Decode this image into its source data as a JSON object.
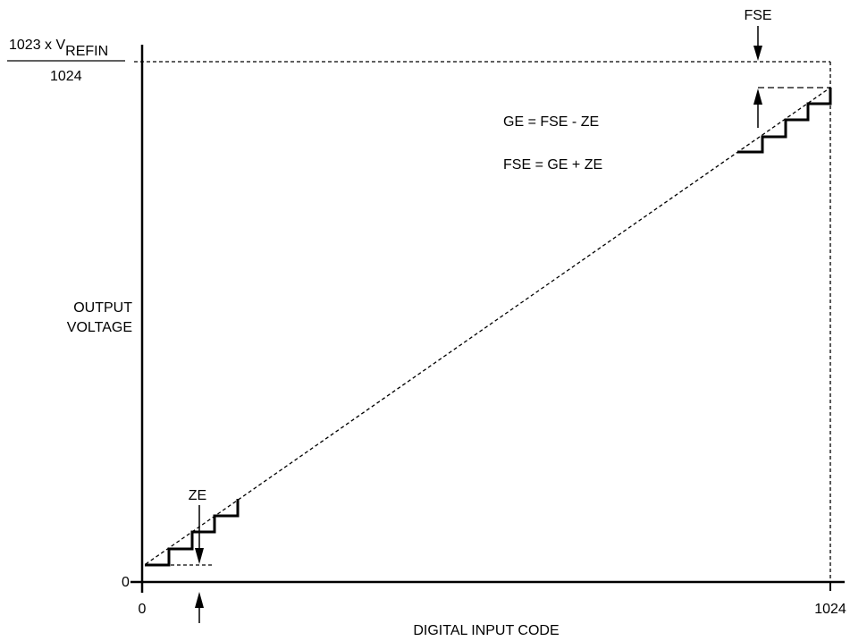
{
  "diagram": {
    "y_top_label": {
      "prefix": "1023 x V",
      "subscript": "REFIN",
      "denominator": "1024"
    },
    "y_zero_label": "0",
    "y_axis_label_line1": "OUTPUT",
    "y_axis_label_line2": "VOLTAGE",
    "x_zero_label": "0",
    "x_end_label": "1024",
    "x_axis_label": "DIGITAL INPUT CODE",
    "fse_label": "FSE",
    "ze_label": "ZE",
    "equation_ge": "GE = FSE - ZE",
    "equation_fse": "FSE = GE + ZE"
  }
}
